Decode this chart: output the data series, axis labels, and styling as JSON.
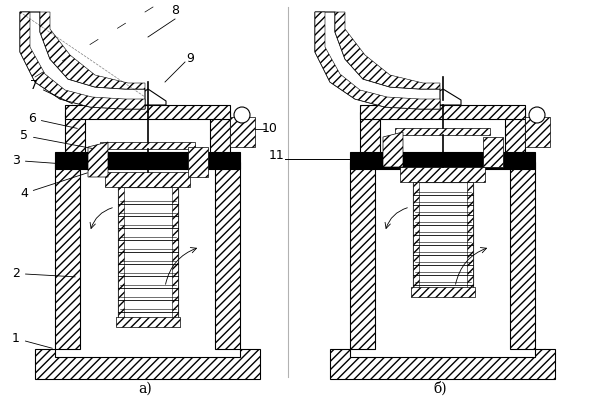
{
  "title": "",
  "background_color": "#ffffff",
  "label_a": "а)",
  "label_b": "б)",
  "numbers": [
    "1",
    "2",
    "3",
    "4",
    "5",
    "6",
    "7",
    "8",
    "9",
    "10",
    "11"
  ],
  "line_color": "#000000",
  "hatch_color": "#000000",
  "figsize": [
    6.0,
    4.07
  ],
  "dpi": 100
}
